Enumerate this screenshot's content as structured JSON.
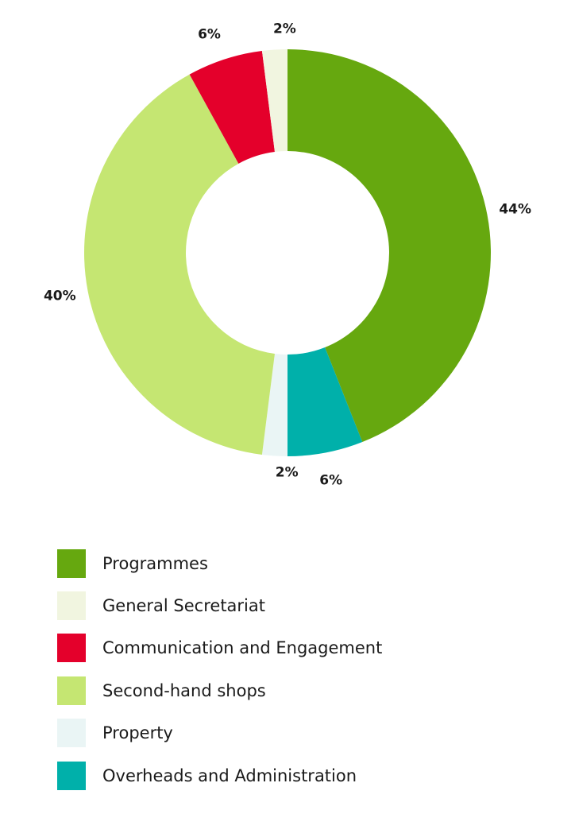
{
  "chart_data": {
    "type": "pie",
    "style": "donut",
    "slices": [
      {
        "label": "Programmes",
        "value": 44,
        "display": "44%",
        "color": "#66a80f"
      },
      {
        "label": "Overheads and Administration",
        "value": 6,
        "display": "6%",
        "color": "#00b0aa"
      },
      {
        "label": "Property",
        "value": 2,
        "display": "2%",
        "color": "#eaf5f5"
      },
      {
        "label": "Second-hand shops",
        "value": 40,
        "display": "40%",
        "color": "#c5e672"
      },
      {
        "label": "Communication and Engagement",
        "value": 6,
        "display": "6%",
        "color": "#e4002b"
      },
      {
        "label": "General Secretariat",
        "value": 2,
        "display": "2%",
        "color": "#f1f5e0"
      }
    ],
    "legend_order": [
      "Programmes",
      "General Secretariat",
      "Communication and Engagement",
      "Second-hand shops",
      "Property",
      "Overheads and Administration"
    ],
    "legend_position": "bottom"
  }
}
